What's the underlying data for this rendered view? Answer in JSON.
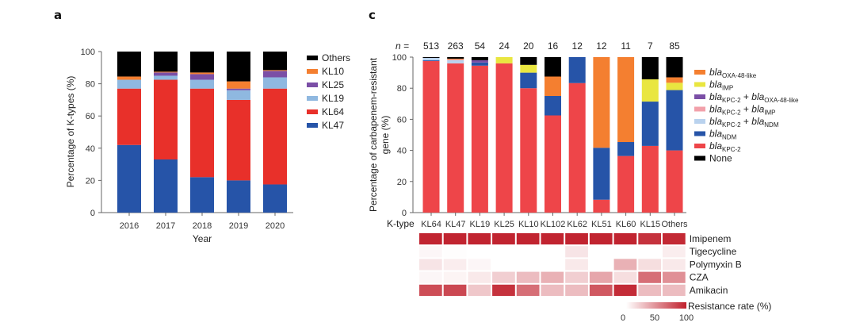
{
  "chart_data": [
    {
      "panel": "a",
      "type": "bar",
      "stacked": true,
      "title": "",
      "xlabel": "Year",
      "ylabel": "Percentage of K-types (%)",
      "ylim": [
        0,
        100
      ],
      "yticks": [
        0,
        20,
        40,
        60,
        80,
        100
      ],
      "categories": [
        "2016",
        "2017",
        "2018",
        "2019",
        "2020"
      ],
      "legend_position": "right",
      "series": [
        {
          "name": "KL47",
          "color": "#2654a8",
          "values": [
            42,
            33,
            22,
            20,
            17.5
          ]
        },
        {
          "name": "KL64",
          "color": "#e8302a",
          "values": [
            35,
            49.5,
            55,
            50,
            59.5
          ]
        },
        {
          "name": "KL19",
          "color": "#8fb8e0",
          "values": [
            5.5,
            2.5,
            5.5,
            6,
            7
          ]
        },
        {
          "name": "KL25",
          "color": "#7b4fa6",
          "values": [
            0,
            2,
            3.5,
            1,
            4
          ]
        },
        {
          "name": "KL10",
          "color": "#f47f30",
          "values": [
            2,
            0.5,
            1,
            4.5,
            0.5
          ]
        },
        {
          "name": "Others",
          "color": "#000000",
          "values": [
            15.5,
            12.5,
            13,
            18.5,
            11.5
          ]
        }
      ],
      "legend_order": [
        "Others",
        "KL10",
        "KL25",
        "KL19",
        "KL64",
        "KL47"
      ]
    },
    {
      "panel": "c",
      "type": "bar",
      "stacked": true,
      "title": "",
      "xlabel": "K-type",
      "ylabel": "Percentage of carbapenem-resistant gene (%)",
      "ylim": [
        0,
        100
      ],
      "yticks": [
        0,
        20,
        40,
        60,
        80,
        100
      ],
      "n_label": "n =",
      "categories": [
        "KL64",
        "KL47",
        "KL19",
        "KL25",
        "KL10",
        "KL102",
        "KL62",
        "KL51",
        "KL60",
        "KL15",
        "Others"
      ],
      "n_values": [
        "513",
        "263",
        "54",
        "24",
        "20",
        "16",
        "12",
        "12",
        "11",
        "7",
        "85"
      ],
      "legend_position": "right",
      "series": [
        {
          "name": "blaKPC-2",
          "base": "bla",
          "sub": "KPC-2",
          "color": "#ee4549",
          "values": [
            97.5,
            96,
            94.5,
            96,
            80,
            62.5,
            83.3,
            8.3,
            36.4,
            42.9,
            40
          ]
        },
        {
          "name": "blaNDM",
          "base": "bla",
          "sub": "NDM",
          "color": "#2654a8",
          "values": [
            0.5,
            0,
            2,
            0,
            10,
            12.5,
            16.7,
            33.4,
            9,
            28.5,
            38.8
          ]
        },
        {
          "name": "blaKPC-2 + blaNDM",
          "base": "bla",
          "sub": "KPC-2",
          "base2": "bla",
          "sub2": "NDM",
          "color": "#b9d2ee",
          "values": [
            1.5,
            2,
            0,
            0,
            0,
            0,
            0,
            0,
            0,
            0,
            0
          ]
        },
        {
          "name": "blaKPC-2 + blaIMP",
          "base": "bla",
          "sub": "KPC-2",
          "base2": "bla",
          "sub2": "IMP",
          "color": "#f2a0aa",
          "values": [
            0,
            0.5,
            0,
            0,
            0,
            0,
            0,
            0,
            0,
            0,
            0
          ]
        },
        {
          "name": "blaKPC-2 + blaOXA-48-like",
          "base": "bla",
          "sub": "KPC-2",
          "base2": "bla",
          "sub2": "OXA-48-like",
          "color": "#7b4fa6",
          "values": [
            0,
            0,
            1.5,
            0,
            0,
            0,
            0,
            0,
            0,
            0,
            0
          ]
        },
        {
          "name": "blaIMP",
          "base": "bla",
          "sub": "IMP",
          "color": "#e9e640",
          "values": [
            0,
            0,
            0,
            4,
            5,
            0,
            0,
            0,
            0,
            14.3,
            4.7
          ]
        },
        {
          "name": "blaOXA-48-like",
          "base": "bla",
          "sub": "OXA-48-like",
          "color": "#f47f30",
          "values": [
            0,
            0.5,
            0,
            0,
            0,
            12.5,
            0,
            58.3,
            54.6,
            0,
            3.5
          ]
        },
        {
          "name": "None",
          "color": "#000000",
          "values": [
            0.5,
            1,
            2,
            0,
            5,
            12.5,
            0,
            0,
            0,
            14.3,
            13
          ]
        }
      ],
      "legend_order": [
        "blaOXA-48-like",
        "blaIMP",
        "blaKPC-2 + blaOXA-48-like",
        "blaKPC-2 + blaIMP",
        "blaKPC-2 + blaNDM",
        "blaNDM",
        "blaKPC-2",
        "None"
      ]
    },
    {
      "panel": "c-heatmap",
      "type": "heatmap",
      "title": "",
      "columns": [
        "KL64",
        "KL47",
        "KL19",
        "KL25",
        "KL10",
        "KL102",
        "KL62",
        "KL51",
        "KL60",
        "KL15",
        "Others"
      ],
      "rows": [
        "Imipenem",
        "Tigecycline",
        "Polymyxin B",
        "CZA",
        "Amikacin"
      ],
      "values": [
        [
          98,
          98,
          98,
          98,
          98,
          98,
          98,
          98,
          98,
          92,
          96
        ],
        [
          4,
          1,
          0,
          0,
          0,
          0,
          12,
          0,
          0,
          0,
          8
        ],
        [
          12,
          8,
          4,
          0,
          0,
          0,
          10,
          0,
          35,
          15,
          10
        ],
        [
          4,
          5,
          10,
          22,
          30,
          35,
          22,
          40,
          15,
          65,
          50
        ],
        [
          80,
          82,
          25,
          92,
          65,
          30,
          30,
          75,
          95,
          30,
          30
        ]
      ],
      "colorbar": {
        "label": "Resistance rate (%)",
        "ticks": [
          "0",
          "50",
          "100"
        ],
        "range": [
          0,
          100
        ],
        "color_low": "#ffffff",
        "color_high": "#c0202c"
      }
    }
  ],
  "labels": {
    "panel_a": "a",
    "panel_c": "c"
  }
}
